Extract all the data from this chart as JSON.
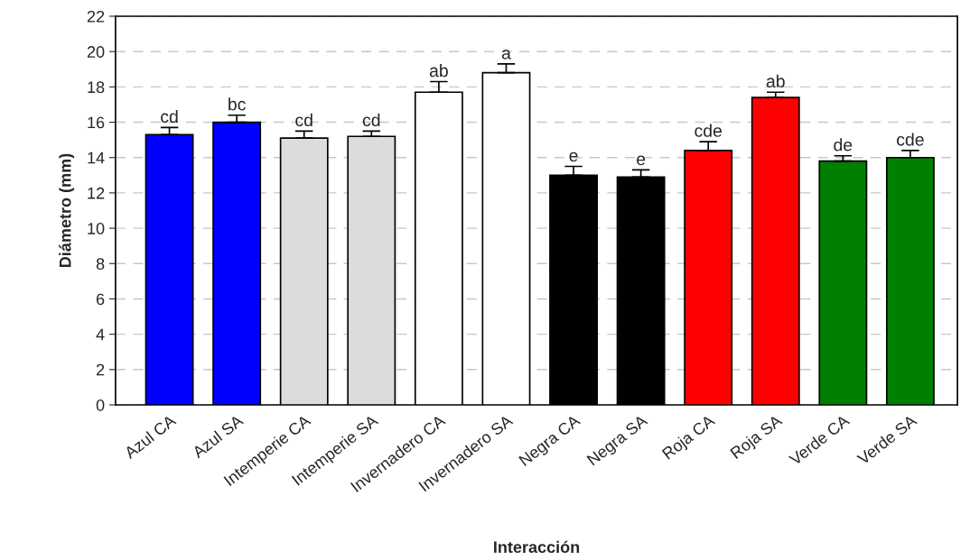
{
  "chart_data": {
    "type": "bar",
    "xlabel": "Interacción",
    "ylabel": "Diámetro (mm)",
    "categories": [
      "Azul CA",
      "Azul SA",
      "Intemperie CA",
      "Intemperie SA",
      "Invernadero CA",
      "Invernadero SA",
      "Negra CA",
      "Negra SA",
      "Roja CA",
      "Roja SA",
      "Verde CA",
      "Verde SA"
    ],
    "values": [
      15.3,
      16.0,
      15.1,
      15.2,
      17.7,
      18.8,
      13.0,
      12.9,
      14.4,
      17.4,
      13.8,
      14.0
    ],
    "errors": [
      [
        15.3,
        15.7
      ],
      [
        16.0,
        16.4
      ],
      [
        15.1,
        15.5
      ],
      [
        15.2,
        15.5
      ],
      [
        17.7,
        18.3
      ],
      [
        18.8,
        19.3
      ],
      [
        13.0,
        13.5
      ],
      [
        12.9,
        13.3
      ],
      [
        14.4,
        14.9
      ],
      [
        17.4,
        17.7
      ],
      [
        13.8,
        14.1
      ],
      [
        14.0,
        14.4
      ]
    ],
    "colors": [
      "#0000ff",
      "#0000ff",
      "#dcdcdc",
      "#dcdcdc",
      "#ffffff",
      "#ffffff",
      "#000000",
      "#000000",
      "#ff0000",
      "#ff0000",
      "#007f00",
      "#007f00"
    ],
    "ylim": [
      0,
      22
    ],
    "yticks": [
      0,
      2,
      4,
      6,
      8,
      10,
      12,
      14,
      16,
      18,
      20,
      22
    ],
    "grid": "y",
    "annotations": [
      {
        "text": "cd",
        "x": "Azul CA",
        "y": 15.3
      },
      {
        "text": "bc",
        "x": "Azul SA",
        "y": 16.0
      },
      {
        "text": "cd",
        "x": "Intemperie CA",
        "y": 15.1
      },
      {
        "text": "cd",
        "x": "Intemperie SA",
        "y": 15.2
      },
      {
        "text": "ab",
        "x": "Invernadero CA",
        "y": 17.7
      },
      {
        "text": "a",
        "x": "Invernadero SA",
        "y": 18.8
      },
      {
        "text": "e",
        "x": "Negra CA",
        "y": 13.0
      },
      {
        "text": "e",
        "x": "Negra SA",
        "y": 12.9
      },
      {
        "text": "cde",
        "x": "Roja CA",
        "y": 14.4
      },
      {
        "text": "ab",
        "x": "Roja SA",
        "y": 17.4
      },
      {
        "text": "de",
        "x": "Verde CA",
        "y": 13.8
      },
      {
        "text": "cde",
        "x": "Verde SA",
        "y": 14.0
      }
    ]
  }
}
